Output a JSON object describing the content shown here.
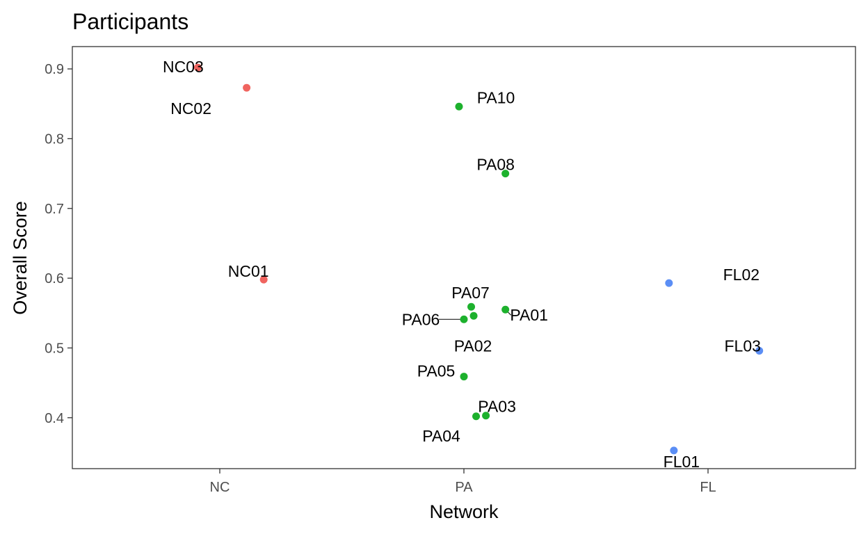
{
  "chart_data": {
    "type": "scatter",
    "title": "Participants",
    "xlabel": "Network",
    "ylabel": "Overall Score",
    "categories": [
      "NC",
      "PA",
      "FL"
    ],
    "ylim": [
      0.327,
      0.932
    ],
    "yticks": [
      0.4,
      0.5,
      0.6,
      0.7,
      0.8,
      0.9
    ],
    "ytick_labels": [
      "0.4",
      "0.5",
      "0.6",
      "0.7",
      "0.8",
      "0.9"
    ],
    "grid": false,
    "legend": "none",
    "colors": {
      "NC": "#F0645F",
      "PA": "#1DB12D",
      "FL": "#5B8EF5"
    },
    "points": [
      {
        "label": "NC03",
        "group": "NC",
        "x": 0.91,
        "y": 0.902
      },
      {
        "label": "NC02",
        "group": "NC",
        "x": 1.11,
        "y": 0.873
      },
      {
        "label": "NC01",
        "group": "NC",
        "x": 1.18,
        "y": 0.598
      },
      {
        "label": "PA10",
        "group": "PA",
        "x": 1.98,
        "y": 0.846
      },
      {
        "label": "PA08",
        "group": "PA",
        "x": 2.17,
        "y": 0.75
      },
      {
        "label": "PA07",
        "group": "PA",
        "x": 2.03,
        "y": 0.559
      },
      {
        "label": "PA01",
        "group": "PA",
        "x": 2.17,
        "y": 0.555
      },
      {
        "label": "PA02",
        "group": "PA",
        "x": 2.04,
        "y": 0.546
      },
      {
        "label": "PA06",
        "group": "PA",
        "x": 2.0,
        "y": 0.541
      },
      {
        "label": "PA05",
        "group": "PA",
        "x": 2.0,
        "y": 0.459
      },
      {
        "label": "PA03",
        "group": "PA",
        "x": 2.09,
        "y": 0.403
      },
      {
        "label": "PA04",
        "group": "PA",
        "x": 2.05,
        "y": 0.402
      },
      {
        "label": "FL02",
        "group": "FL",
        "x": 2.84,
        "y": 0.593
      },
      {
        "label": "FL03",
        "group": "FL",
        "x": 3.21,
        "y": 0.496
      },
      {
        "label": "FL01",
        "group": "FL",
        "x": 2.86,
        "y": 0.353
      }
    ]
  }
}
